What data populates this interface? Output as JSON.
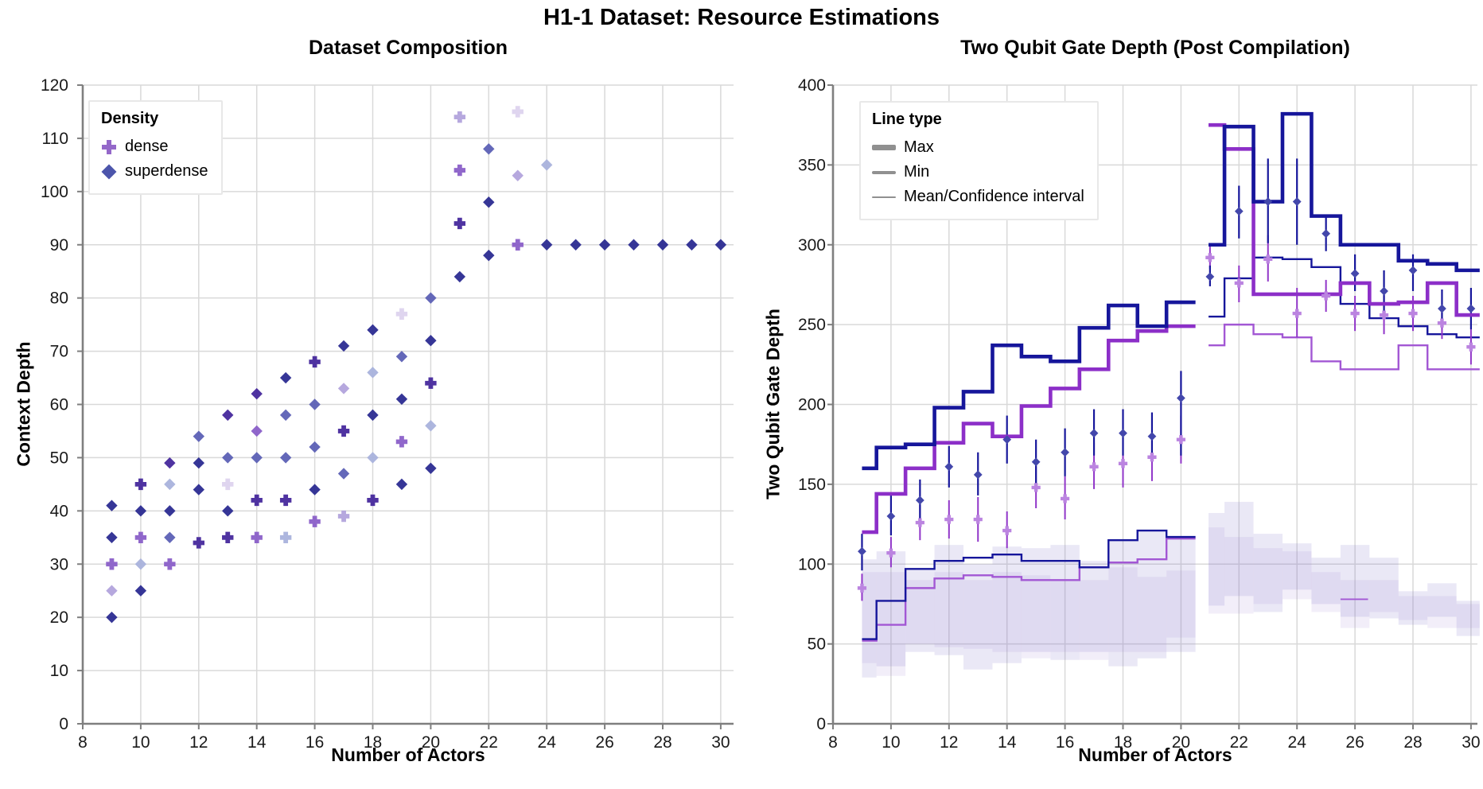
{
  "page": {
    "title": "H1-1 Dataset: Resource Estimations"
  },
  "chart_data": [
    {
      "type": "scatter",
      "title": "Dataset Composition",
      "xlabel": "Number of Actors",
      "ylabel": "Context Depth",
      "xlim": [
        8,
        30.2
      ],
      "ylim": [
        0,
        120
      ],
      "xticks": [
        8,
        10,
        12,
        14,
        16,
        18,
        20,
        22,
        24,
        26,
        28,
        30
      ],
      "yticks": [
        0,
        10,
        20,
        30,
        40,
        50,
        60,
        70,
        80,
        90,
        100,
        110,
        120
      ],
      "grid": true,
      "legend": {
        "title": "Density",
        "position": "upper-left",
        "items": [
          {
            "label": "dense",
            "marker": "plus-icon",
            "color": "#9468c9"
          },
          {
            "label": "superdense",
            "marker": "diamond-icon",
            "color": "#4c55ab"
          }
        ]
      },
      "palette": {
        "c1": "#2b2b91",
        "c2": "#46289c",
        "c3": "#8a5fc8",
        "c4": "#5c60b5",
        "c5": "#b2a3dc",
        "c6": "#a9b2dc",
        "c7": "#ddd3ee"
      },
      "points": [
        [
          9,
          20,
          "D",
          "c1"
        ],
        [
          9,
          25,
          "D",
          "c5"
        ],
        [
          9,
          30,
          "P",
          "c3"
        ],
        [
          9,
          35,
          "D",
          "c1"
        ],
        [
          9,
          41,
          "D",
          "c1"
        ],
        [
          10,
          25,
          "D",
          "c1"
        ],
        [
          10,
          30,
          "D",
          "c6"
        ],
        [
          10,
          35,
          "P",
          "c3"
        ],
        [
          10,
          40,
          "D",
          "c1"
        ],
        [
          10,
          45,
          "P",
          "c2"
        ],
        [
          11,
          30,
          "P",
          "c3"
        ],
        [
          11,
          35,
          "D",
          "c4"
        ],
        [
          11,
          40,
          "D",
          "c1"
        ],
        [
          11,
          45,
          "D",
          "c6"
        ],
        [
          11,
          49,
          "D",
          "c2"
        ],
        [
          12,
          34,
          "P",
          "c2"
        ],
        [
          12,
          44,
          "D",
          "c1"
        ],
        [
          12,
          49,
          "D",
          "c1"
        ],
        [
          12,
          54,
          "D",
          "c4"
        ],
        [
          13,
          35,
          "P",
          "c2"
        ],
        [
          13,
          40,
          "D",
          "c1"
        ],
        [
          13,
          45,
          "P",
          "c7"
        ],
        [
          13,
          50,
          "D",
          "c4"
        ],
        [
          13,
          58,
          "D",
          "c2"
        ],
        [
          14,
          35,
          "P",
          "c3"
        ],
        [
          14,
          42,
          "P",
          "c2"
        ],
        [
          14,
          50,
          "D",
          "c4"
        ],
        [
          14,
          55,
          "D",
          "c3"
        ],
        [
          14,
          62,
          "D",
          "c2"
        ],
        [
          15,
          35,
          "P",
          "c6"
        ],
        [
          15,
          42,
          "P",
          "c2"
        ],
        [
          15,
          50,
          "D",
          "c4"
        ],
        [
          15,
          58,
          "D",
          "c4"
        ],
        [
          15,
          65,
          "D",
          "c1"
        ],
        [
          16,
          38,
          "P",
          "c3"
        ],
        [
          16,
          44,
          "D",
          "c1"
        ],
        [
          16,
          52,
          "D",
          "c4"
        ],
        [
          16,
          60,
          "D",
          "c4"
        ],
        [
          16,
          68,
          "P",
          "c2"
        ],
        [
          17,
          39,
          "P",
          "c5"
        ],
        [
          17,
          47,
          "D",
          "c4"
        ],
        [
          17,
          55,
          "P",
          "c2"
        ],
        [
          17,
          63,
          "D",
          "c5"
        ],
        [
          17,
          71,
          "D",
          "c1"
        ],
        [
          18,
          42,
          "P",
          "c2"
        ],
        [
          18,
          50,
          "D",
          "c6"
        ],
        [
          18,
          58,
          "D",
          "c1"
        ],
        [
          18,
          66,
          "D",
          "c6"
        ],
        [
          18,
          74,
          "D",
          "c1"
        ],
        [
          19,
          45,
          "D",
          "c1"
        ],
        [
          19,
          53,
          "P",
          "c3"
        ],
        [
          19,
          61,
          "D",
          "c1"
        ],
        [
          19,
          69,
          "D",
          "c4"
        ],
        [
          19,
          77,
          "P",
          "c7"
        ],
        [
          20,
          48,
          "D",
          "c1"
        ],
        [
          20,
          56,
          "D",
          "c6"
        ],
        [
          20,
          64,
          "P",
          "c2"
        ],
        [
          20,
          72,
          "D",
          "c1"
        ],
        [
          20,
          80,
          "D",
          "c4"
        ],
        [
          21,
          84,
          "D",
          "c1"
        ],
        [
          21,
          94,
          "P",
          "c2"
        ],
        [
          21,
          104,
          "P",
          "c3"
        ],
        [
          21,
          114,
          "P",
          "c5"
        ],
        [
          22,
          88,
          "D",
          "c1"
        ],
        [
          22,
          98,
          "D",
          "c1"
        ],
        [
          22,
          108,
          "D",
          "c4"
        ],
        [
          23,
          90,
          "P",
          "c3"
        ],
        [
          23,
          103,
          "D",
          "c5"
        ],
        [
          23,
          115,
          "P",
          "c7"
        ],
        [
          24,
          90,
          "D",
          "c1"
        ],
        [
          24,
          105,
          "D",
          "c6"
        ],
        [
          25,
          90,
          "D",
          "c1"
        ],
        [
          26,
          90,
          "D",
          "c1"
        ],
        [
          27,
          90,
          "D",
          "c1"
        ],
        [
          28,
          90,
          "D",
          "c1"
        ],
        [
          29,
          90,
          "D",
          "c1"
        ],
        [
          30,
          90,
          "D",
          "c1"
        ]
      ]
    },
    {
      "type": "step",
      "title": "Two Qubit Gate Depth (Post Compilation)",
      "xlabel": "Number of Actors",
      "ylabel": "Two Qubit Gate Depth",
      "xlim": [
        8,
        30.2
      ],
      "ylim": [
        0,
        400
      ],
      "xticks": [
        8,
        10,
        12,
        14,
        16,
        18,
        20,
        22,
        24,
        26,
        28,
        30
      ],
      "yticks": [
        0,
        50,
        100,
        150,
        200,
        250,
        300,
        350,
        400
      ],
      "grid": true,
      "legend": {
        "title": "Line type",
        "position": "upper-left",
        "sample_color": "#909090",
        "items": [
          {
            "label": "Max",
            "weight": "thick"
          },
          {
            "label": "Min",
            "weight": "medium"
          },
          {
            "label": "Mean/Confidence interval",
            "weight": "thin"
          }
        ]
      },
      "series_colors": {
        "superdense_line": "#16169b",
        "dense_max_line": "#8c2fc8",
        "dense_min_line": "#a257d4",
        "superdense_mean_marker": "#4347ab",
        "superdense_mean_line": "#16169b",
        "dense_mean_marker": "#bb84e0",
        "dense_mean_line": "#9136c9",
        "band_superdense": "rgba(124,110,196,0.16)",
        "band_dense": "rgba(155,125,205,0.13)"
      },
      "clusters": [
        {
          "xstart": 9.0,
          "xend": 20.5
        },
        {
          "xstart": 20.95,
          "xend": 30.3
        }
      ],
      "bins": [
        9,
        10,
        11,
        12,
        13,
        14,
        15,
        16,
        17,
        18,
        19,
        20,
        21,
        22,
        23,
        24,
        25,
        26,
        27,
        28,
        29,
        30
      ],
      "max": {
        "superdense": [
          160,
          173,
          175,
          198,
          208,
          237,
          230,
          227,
          248,
          262,
          249,
          264,
          300,
          374,
          327,
          382,
          318,
          300,
          300,
          290,
          288,
          284
        ],
        "dense": [
          120,
          144,
          160,
          176,
          188,
          180,
          199,
          210,
          222,
          240,
          246,
          249,
          375,
          360,
          269,
          269,
          269,
          276,
          263,
          264,
          276,
          256
        ]
      },
      "min": {
        "superdense": [
          53,
          77,
          97,
          102,
          104,
          106,
          102,
          102,
          98,
          115,
          121,
          117,
          255,
          279,
          292,
          291,
          286,
          263,
          254,
          249,
          244,
          242
        ],
        "dense": [
          52,
          62,
          85,
          91,
          93,
          92,
          90,
          90,
          98,
          101,
          103,
          116,
          237,
          250,
          244,
          242,
          227,
          222,
          222,
          237,
          222,
          222
        ]
      },
      "mean": {
        "superdense": [
          {
            "x": 9,
            "v": 108,
            "lo": 96,
            "hi": 119
          },
          {
            "x": 10,
            "v": 130,
            "lo": 118,
            "hi": 144
          },
          {
            "x": 11,
            "v": 140,
            "lo": 127,
            "hi": 153
          },
          {
            "x": 12,
            "v": 161,
            "lo": 148,
            "hi": 174
          },
          {
            "x": 13,
            "v": 156,
            "lo": 143,
            "hi": 170
          },
          {
            "x": 14,
            "v": 178,
            "lo": 163,
            "hi": 193
          },
          {
            "x": 15,
            "v": 164,
            "lo": 150,
            "hi": 178
          },
          {
            "x": 16,
            "v": 170,
            "lo": 155,
            "hi": 185
          },
          {
            "x": 17,
            "v": 182,
            "lo": 168,
            "hi": 197
          },
          {
            "x": 18,
            "v": 182,
            "lo": 168,
            "hi": 197
          },
          {
            "x": 19,
            "v": 180,
            "lo": 165,
            "hi": 195
          },
          {
            "x": 20,
            "v": 204,
            "lo": 168,
            "hi": 221
          },
          {
            "x": 21,
            "v": 280,
            "lo": 274,
            "hi": 287
          },
          {
            "x": 22,
            "v": 321,
            "lo": 304,
            "hi": 337
          },
          {
            "x": 23,
            "v": 327,
            "lo": 301,
            "hi": 354
          },
          {
            "x": 24,
            "v": 327,
            "lo": 300,
            "hi": 354
          },
          {
            "x": 25,
            "v": 307,
            "lo": 296,
            "hi": 319
          },
          {
            "x": 26,
            "v": 282,
            "lo": 271,
            "hi": 294
          },
          {
            "x": 27,
            "v": 271,
            "lo": 258,
            "hi": 284
          },
          {
            "x": 28,
            "v": 284,
            "lo": 271,
            "hi": 294
          },
          {
            "x": 29,
            "v": 260,
            "lo": 249,
            "hi": 272
          },
          {
            "x": 30,
            "v": 260,
            "lo": 247,
            "hi": 273
          }
        ],
        "dense": [
          {
            "x": 9,
            "v": 85,
            "lo": 77,
            "hi": 94
          },
          {
            "x": 10,
            "v": 107,
            "lo": 98,
            "hi": 117
          },
          {
            "x": 11,
            "v": 126,
            "lo": 115,
            "hi": 137
          },
          {
            "x": 12,
            "v": 128,
            "lo": 116,
            "hi": 140
          },
          {
            "x": 13,
            "v": 128,
            "lo": 114,
            "hi": 142
          },
          {
            "x": 14,
            "v": 121,
            "lo": 110,
            "hi": 133
          },
          {
            "x": 15,
            "v": 148,
            "lo": 135,
            "hi": 161
          },
          {
            "x": 16,
            "v": 141,
            "lo": 128,
            "hi": 155
          },
          {
            "x": 17,
            "v": 161,
            "lo": 147,
            "hi": 176
          },
          {
            "x": 18,
            "v": 163,
            "lo": 148,
            "hi": 178
          },
          {
            "x": 19,
            "v": 167,
            "lo": 152,
            "hi": 183
          },
          {
            "x": 20,
            "v": 178,
            "lo": 163,
            "hi": 193
          },
          {
            "x": 21,
            "v": 292,
            "lo": 285,
            "hi": 299
          },
          {
            "x": 22,
            "v": 276,
            "lo": 264,
            "hi": 287
          },
          {
            "x": 23,
            "v": 291,
            "lo": 277,
            "hi": 306
          },
          {
            "x": 24,
            "v": 257,
            "lo": 242,
            "hi": 273
          },
          {
            "x": 25,
            "v": 268,
            "lo": 258,
            "hi": 278
          },
          {
            "x": 26,
            "v": 257,
            "lo": 246,
            "hi": 268
          },
          {
            "x": 27,
            "v": 256,
            "lo": 244,
            "hi": 268
          },
          {
            "x": 28,
            "v": 257,
            "lo": 246,
            "hi": 268
          },
          {
            "x": 29,
            "v": 251,
            "lo": 241,
            "hi": 261
          },
          {
            "x": 30,
            "v": 236,
            "lo": 225,
            "hi": 247
          }
        ]
      },
      "bands": {
        "superdense": [
          [
            9,
            29,
            103
          ],
          [
            10,
            36,
            108
          ],
          [
            11,
            45,
            97
          ],
          [
            12,
            43,
            112
          ],
          [
            13,
            34,
            100
          ],
          [
            14,
            38,
            111
          ],
          [
            15,
            45,
            110
          ],
          [
            16,
            40,
            112
          ],
          [
            17,
            45,
            102
          ],
          [
            18,
            36,
            116
          ],
          [
            19,
            41,
            121
          ],
          [
            20,
            45,
            117
          ],
          [
            21,
            74,
            132
          ],
          [
            22,
            80,
            139
          ],
          [
            23,
            70,
            119
          ],
          [
            24,
            84,
            113
          ],
          [
            25,
            75,
            104
          ],
          [
            26,
            67,
            112
          ],
          [
            27,
            66,
            104
          ],
          [
            28,
            62,
            83
          ],
          [
            29,
            67,
            88
          ],
          [
            30,
            55,
            77
          ]
        ],
        "dense": [
          [
            9,
            38,
            95
          ],
          [
            10,
            30,
            95
          ],
          [
            11,
            50,
            90
          ],
          [
            12,
            48,
            95
          ],
          [
            13,
            47,
            90
          ],
          [
            14,
            45,
            95
          ],
          [
            15,
            41,
            93
          ],
          [
            16,
            45,
            90
          ],
          [
            17,
            40,
            90
          ],
          [
            18,
            45,
            98
          ],
          [
            19,
            45,
            92
          ],
          [
            20,
            54,
            96
          ],
          [
            21,
            69,
            123
          ],
          [
            22,
            69,
            117
          ],
          [
            23,
            75,
            110
          ],
          [
            24,
            78,
            108
          ],
          [
            25,
            70,
            95
          ],
          [
            26,
            60,
            90
          ],
          [
            27,
            70,
            90
          ],
          [
            28,
            65,
            80
          ],
          [
            29,
            60,
            80
          ],
          [
            30,
            60,
            75
          ]
        ]
      },
      "extra_min_segment": {
        "x0": 25.5,
        "x1": 26.45,
        "v": 78
      }
    }
  ]
}
